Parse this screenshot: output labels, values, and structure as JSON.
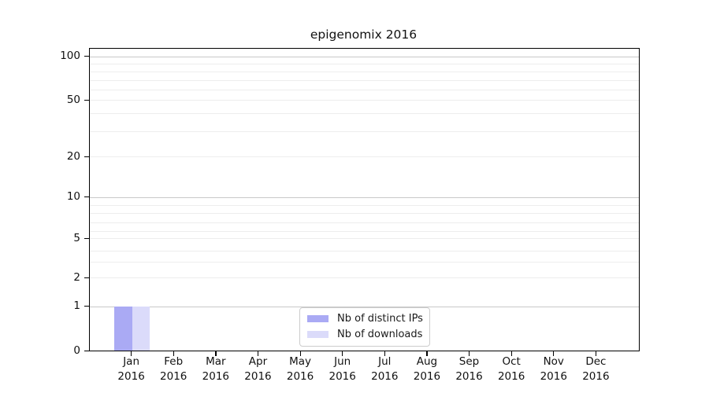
{
  "title": "epigenomix 2016",
  "chart_data": {
    "type": "bar",
    "title": "epigenomix 2016",
    "categories": [
      "Jan 2016",
      "Feb 2016",
      "Mar 2016",
      "Apr 2016",
      "May 2016",
      "Jun 2016",
      "Jul 2016",
      "Aug 2016",
      "Sep 2016",
      "Oct 2016",
      "Nov 2016",
      "Dec 2016"
    ],
    "series": [
      {
        "name": "Nb of distinct IPs",
        "color": "#aaaaf4",
        "values": [
          1,
          0,
          0,
          0,
          0,
          0,
          0,
          0,
          0,
          0,
          0,
          0
        ]
      },
      {
        "name": "Nb of downloads",
        "color": "#dbdbfa",
        "values": [
          1,
          0,
          0,
          0,
          0,
          0,
          0,
          0,
          0,
          0,
          0,
          0
        ]
      }
    ],
    "yticks": [
      0,
      1,
      2,
      5,
      10,
      20,
      50,
      100
    ],
    "ylim": [
      0,
      110
    ],
    "xlabel": "",
    "ylabel": "",
    "scale": "log-like",
    "grid": "horizontal, minor + major",
    "legend_position": "lower center (inside plot)"
  },
  "legend": {
    "items": [
      {
        "label": "Nb of distinct IPs",
        "swatch": "bar-ips-swatch"
      },
      {
        "label": "Nb of downloads",
        "swatch": "bar-downloads-swatch"
      }
    ]
  },
  "colors": {
    "bar_ips": "#aaaaf4",
    "bar_downloads": "#dbdbfa",
    "grid_minor": "#ededed",
    "grid_major": "#c8c8c8",
    "axis": "#000000",
    "legend_border": "#cccccc"
  }
}
